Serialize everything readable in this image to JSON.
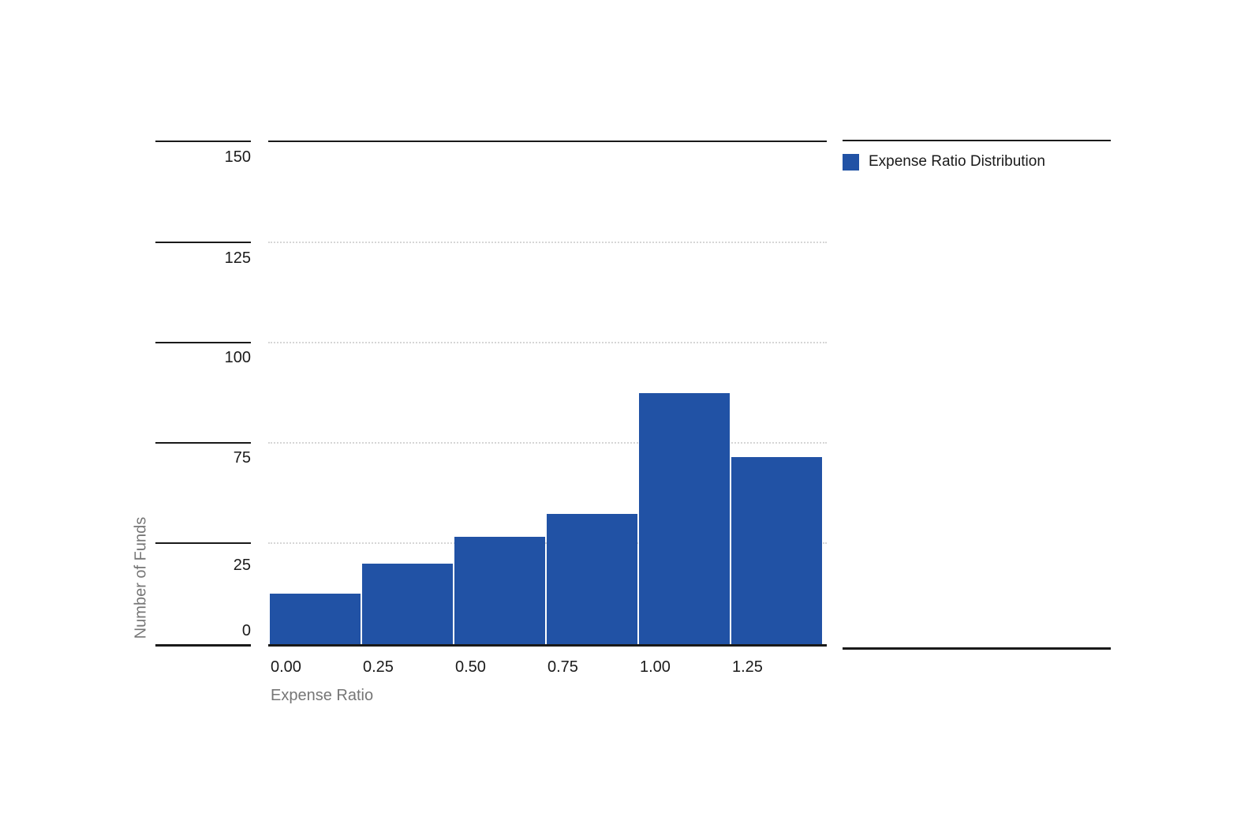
{
  "chart": {
    "legend_label": "Expense Ratio Distribution",
    "y_axis_label": "Number of Funds",
    "x_axis_label": "Expense Ratio",
    "y_ticks": [
      "150",
      "125",
      "100",
      "75",
      "25",
      "0"
    ],
    "x_ticks": [
      "0.00",
      "0.25",
      "0.50",
      "0.75",
      "1.00",
      "1.25"
    ],
    "colors": {
      "bar": "#2152a5",
      "axis_line": "#1a1a1a",
      "grid_line": "#d6d6d6",
      "axis_title_text": "#767676",
      "tick_text": "#1a1a1a"
    }
  },
  "chart_data": {
    "type": "bar",
    "subtype": "histogram",
    "title": "Expense Ratio Distribution",
    "xlabel": "Expense Ratio",
    "ylabel": "Number of Funds",
    "categories": [
      "0.00",
      "0.25",
      "0.50",
      "0.75",
      "1.00",
      "1.25"
    ],
    "values": [
      15,
      24,
      32,
      39,
      75,
      56
    ],
    "bin_width": 0.25,
    "ylim": [
      0,
      150
    ],
    "y_tick_labels_shown": [
      "150",
      "125",
      "100",
      "75",
      "25",
      "0"
    ],
    "grid": "horizontal-dashed",
    "legend": [
      "Expense Ratio Distribution"
    ],
    "legend_position": "top-right",
    "bar_color": "#2152a5"
  }
}
